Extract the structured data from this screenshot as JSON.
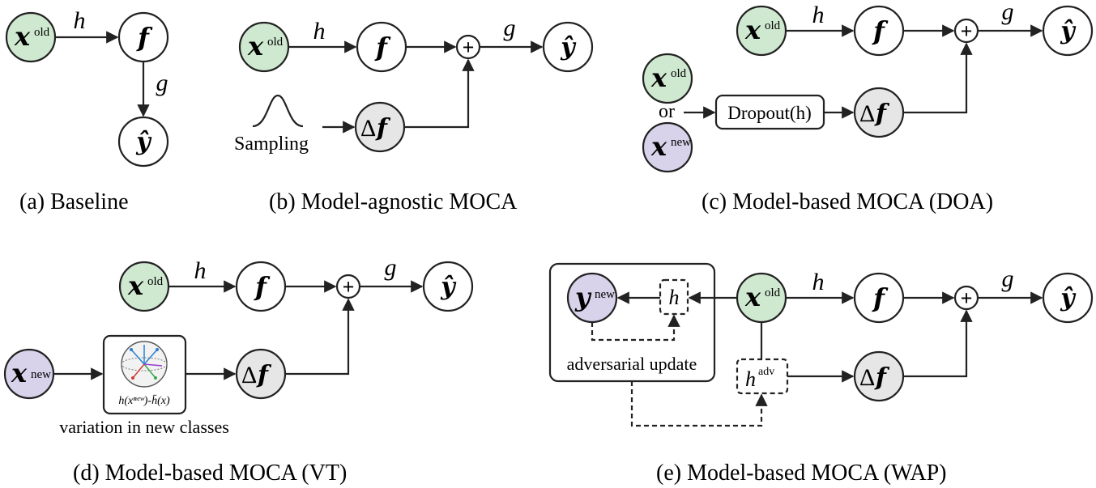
{
  "colors": {
    "old_node": "#cfe8d0",
    "new_node": "#d8d2ea",
    "delta_node": "#e6e6e6",
    "plain_node": "#ffffff",
    "stroke": "#222222"
  },
  "symbols": {
    "x": "x",
    "f": "f",
    "y_hat": "ŷ",
    "y": "y",
    "delta_f": "Δf",
    "delta": "Δ",
    "plus": "+",
    "h": "h",
    "g": "g",
    "old": "old",
    "new": "new",
    "adv": "adv"
  },
  "panel_a": {
    "caption": "(a) Baseline"
  },
  "panel_b": {
    "caption": "(b) Model-agnostic MOCA",
    "sampling_label": "Sampling"
  },
  "panel_c": {
    "caption": "(c) Model-based MOCA (DOA)",
    "or_label": "or",
    "dropout_label": "Dropout(h)"
  },
  "panel_d": {
    "caption": "(d) Model-based MOCA (VT)",
    "variation_label": "variation in new classes",
    "formula_label": "h(xⁿᵉʷ)-h̄(x)"
  },
  "panel_e": {
    "caption": "(e) Model-based MOCA (WAP)",
    "adv_update_label": "adversarial update"
  }
}
